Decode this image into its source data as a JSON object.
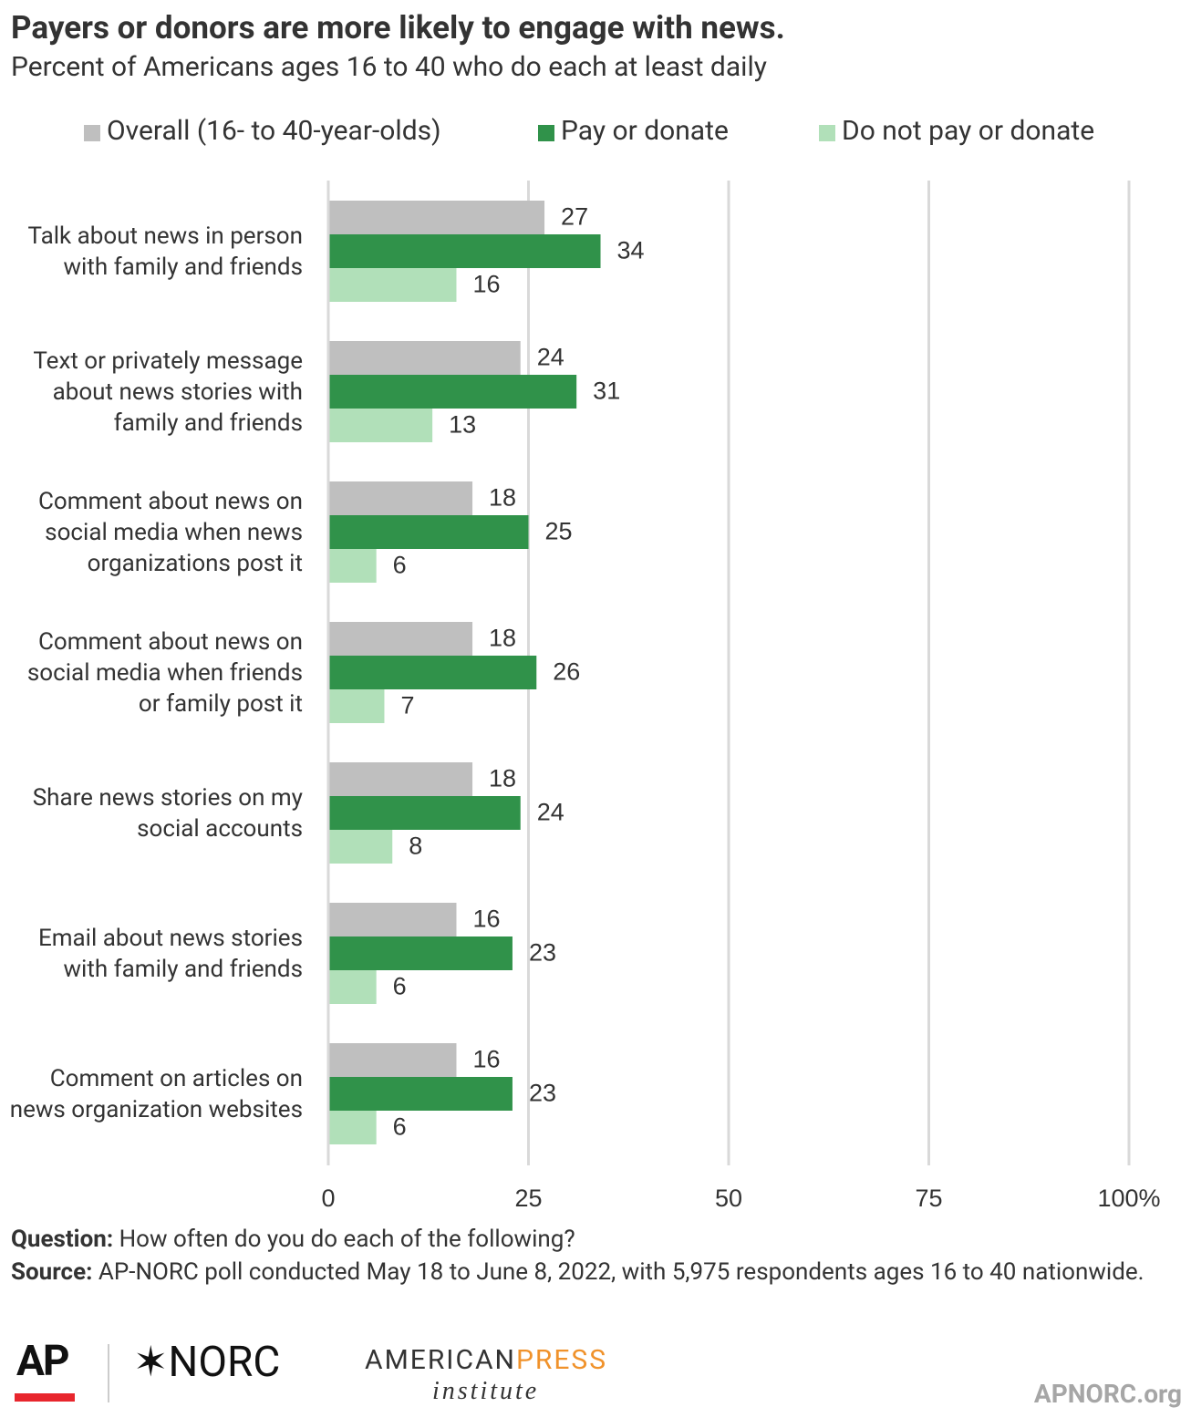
{
  "chart_data": {
    "type": "bar",
    "orientation": "horizontal",
    "title": "Payers or donors are more likely to engage with news.",
    "subtitle": "Percent of Americans ages 16 to 40 who do each at least daily",
    "categories": [
      "Talk about news in person with family and friends",
      "Text or privately message about news stories with family and friends",
      "Comment about news on social media when news organizations post it",
      "Comment about news on social media when friends or family post it",
      "Share news stories on my social accounts",
      "Email about news stories with family and friends",
      "Comment on articles on news organization websites"
    ],
    "series": [
      {
        "name": "Overall (16- to 40-year-olds)",
        "color": "#bfbfbf",
        "values": [
          27,
          24,
          18,
          18,
          18,
          16,
          16
        ]
      },
      {
        "name": "Pay or donate",
        "color": "#30924a",
        "values": [
          34,
          31,
          25,
          26,
          24,
          23,
          23
        ]
      },
      {
        "name": "Do not pay or donate",
        "color": "#b1e0b9",
        "values": [
          16,
          13,
          6,
          7,
          8,
          6,
          6
        ]
      }
    ],
    "xlim": [
      0,
      100
    ],
    "xticks": [
      0,
      25,
      50,
      75,
      {
        "value": 100,
        "label": "100%"
      }
    ],
    "grid": true,
    "legend": "top"
  },
  "footer": {
    "question_label": "Question:",
    "question_text": "How often do you do each of the following?",
    "source_label": "Source:",
    "source_text": "AP-NORC poll conducted May 18 to June 8, 2022, with 5,975 respondents ages 16 to 40 nationwide."
  },
  "logos": {
    "ap": "AP",
    "norc": "NORC",
    "api_1": "AMERICAN",
    "api_2": "PRESS",
    "api_3": "institute",
    "site": "APNORC.org"
  }
}
